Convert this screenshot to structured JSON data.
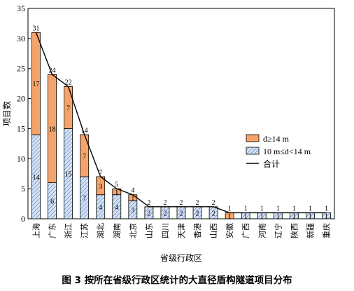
{
  "caption": "图 3   按所在省级行政区统计的大直径盾构隧道项目分布",
  "chart_data": {
    "type": "bar",
    "stacked": true,
    "categories": [
      "上海",
      "广东",
      "浙江",
      "江苏",
      "湖北",
      "湖南",
      "北京",
      "山东",
      "四川",
      "天津",
      "香港",
      "山西",
      "安徽",
      "广西",
      "河南",
      "辽宁",
      "陕西",
      "新疆",
      "重庆"
    ],
    "series": [
      {
        "name": "10 m≤d<14 m",
        "values": [
          14,
          6,
          15,
          7,
          4,
          4,
          3,
          2,
          2,
          2,
          2,
          2,
          0,
          1,
          1,
          1,
          1,
          1,
          1
        ],
        "color": "#c6d9f0",
        "hatch": "#3b5ea8"
      },
      {
        "name": "d≥14 m",
        "values": [
          17,
          18,
          7,
          7,
          3,
          1,
          1,
          0,
          0,
          0,
          0,
          0,
          1,
          0,
          0,
          0,
          0,
          0,
          0
        ],
        "color": "#f4a46a"
      }
    ],
    "line": {
      "name": "合计",
      "values": [
        31,
        24,
        22,
        14,
        7,
        5,
        4,
        2,
        2,
        2,
        2,
        2,
        1,
        1,
        1,
        1,
        1,
        1,
        1
      ]
    },
    "xlabel": "省级行政区",
    "ylabel": "项目数",
    "ylim": [
      0,
      35
    ],
    "yticks": [
      0,
      5,
      10,
      15,
      20,
      25,
      30,
      35
    ],
    "legend": {
      "position": "right",
      "entries": [
        "d≥14 m",
        "10 m≤d<14 m",
        "合计"
      ]
    },
    "grid": false
  }
}
